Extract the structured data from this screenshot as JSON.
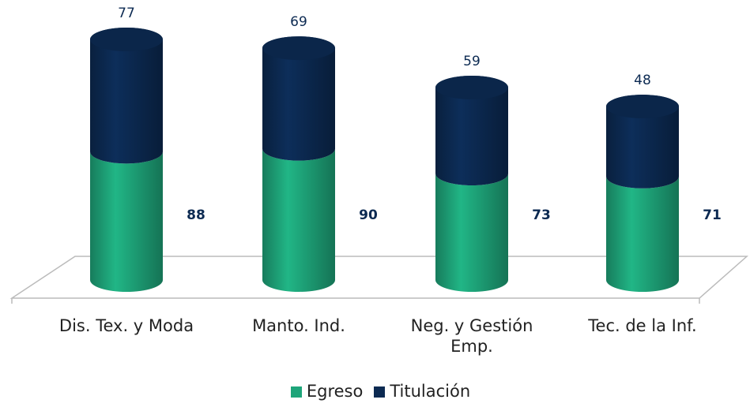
{
  "chart_data": {
    "type": "bar",
    "stacked": true,
    "style": "3d-cylinder",
    "categories": [
      "Dis. Tex. y Moda",
      "Manto. Ind.",
      "Neg. y Gestión Emp.",
      "Tec. de la Inf."
    ],
    "series": [
      {
        "name": "Egreso",
        "color": "#1ea57a",
        "values": [
          88,
          90,
          73,
          71
        ]
      },
      {
        "name": "Titulación",
        "color": "#0c2a52",
        "values": [
          77,
          69,
          59,
          48
        ]
      }
    ],
    "legend": "bottom"
  }
}
